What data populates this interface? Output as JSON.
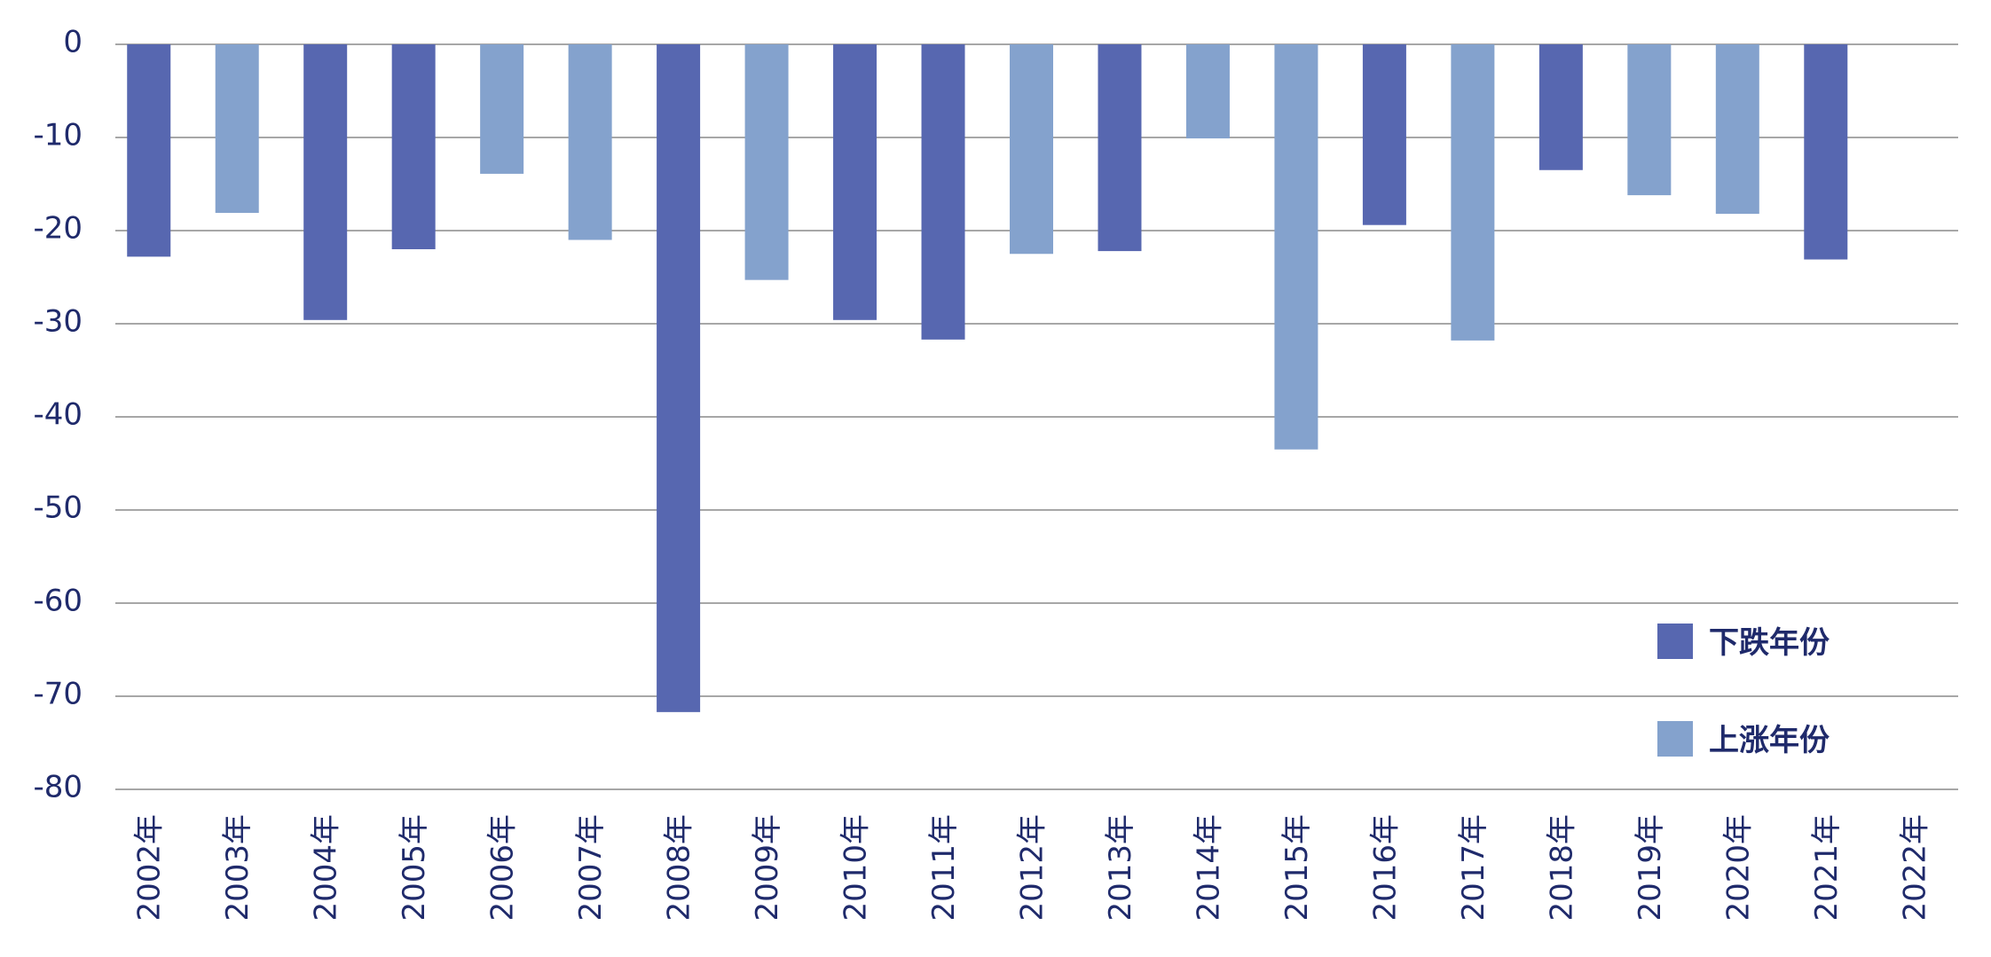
{
  "chart_data": {
    "type": "bar",
    "title": "",
    "xlabel": "",
    "ylabel": "",
    "ylim": [
      -80,
      0
    ],
    "yticks": [
      0,
      -10,
      -20,
      -30,
      -40,
      -50,
      -60,
      -70,
      -80
    ],
    "ytick_labels": [
      "0",
      "-10",
      "-20",
      "-30",
      "-40",
      "-50",
      "-60",
      "-70",
      "-80"
    ],
    "grid": true,
    "legend_position": "lower-right",
    "categories": [
      "2002年",
      "2003年",
      "2004年",
      "2005年",
      "2006年",
      "2007年",
      "2008年",
      "2009年",
      "2010年",
      "2011年",
      "2012年",
      "2013年",
      "2014年",
      "2015年",
      "2016年",
      "2017年",
      "2018年",
      "2019年",
      "2020年",
      "2021年",
      "2022年"
    ],
    "values": [
      -22.8,
      -18.1,
      -29.6,
      -22.0,
      -13.9,
      -21.0,
      -71.7,
      -25.3,
      -29.6,
      -31.7,
      -22.5,
      -22.2,
      -10.1,
      -43.5,
      -19.4,
      -31.8,
      -13.5,
      -16.2,
      -18.2,
      -23.1,
      null
    ],
    "groups": [
      "down",
      "up",
      "down",
      "down",
      "up",
      "up",
      "down",
      "up",
      "down",
      "down",
      "up",
      "down",
      "up",
      "up",
      "down",
      "up",
      "down",
      "up",
      "up",
      "down",
      "down"
    ],
    "series": [
      {
        "key": "down",
        "name": "下跌年份",
        "color": "#5767b0"
      },
      {
        "key": "up",
        "name": "上涨年份",
        "color": "#84a2cd"
      }
    ]
  },
  "colors": {
    "axis_text": "#1f2a6b",
    "grid": "#8a8a8a",
    "background": "#ffffff"
  }
}
